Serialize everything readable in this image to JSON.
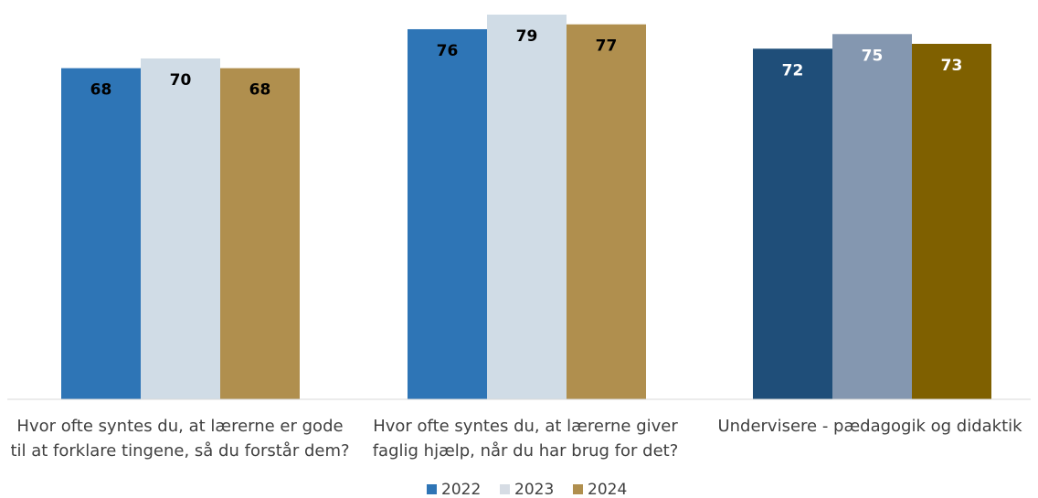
{
  "chart_data": {
    "type": "bar",
    "categories": [
      [
        "Hvor ofte syntes du, at lærerne er gode",
        "til at forklare tingene, så du forstår dem?"
      ],
      [
        "Hvor ofte syntes du, at lærerne giver",
        "faglig hjælp, når du har brug for det?"
      ],
      [
        "Undervisere - pædagogik og didaktik"
      ]
    ],
    "series": [
      {
        "name": "2022",
        "values": [
          68,
          76,
          72
        ]
      },
      {
        "name": "2023",
        "values": [
          70,
          79,
          75
        ]
      },
      {
        "name": "2024",
        "values": [
          68,
          77,
          73
        ]
      }
    ],
    "ylim": [
      0,
      82
    ],
    "grid": false,
    "legend_position": "bottom",
    "legend_colors": [
      "#2E75B6",
      "#D6DCE4",
      "#B08F4E"
    ],
    "bar_colors": [
      [
        "#2E75B6",
        "#D0DCE6",
        "#B08F4E"
      ],
      [
        "#2E75B6",
        "#D0DCE6",
        "#B08F4E"
      ],
      [
        "#1F4E79",
        "#8497B0",
        "#7F6000"
      ]
    ],
    "label_colors": [
      [
        "#000000",
        "#000000",
        "#000000"
      ],
      [
        "#000000",
        "#000000",
        "#000000"
      ],
      [
        "#ffffff",
        "#ffffff",
        "#ffffff"
      ]
    ]
  }
}
